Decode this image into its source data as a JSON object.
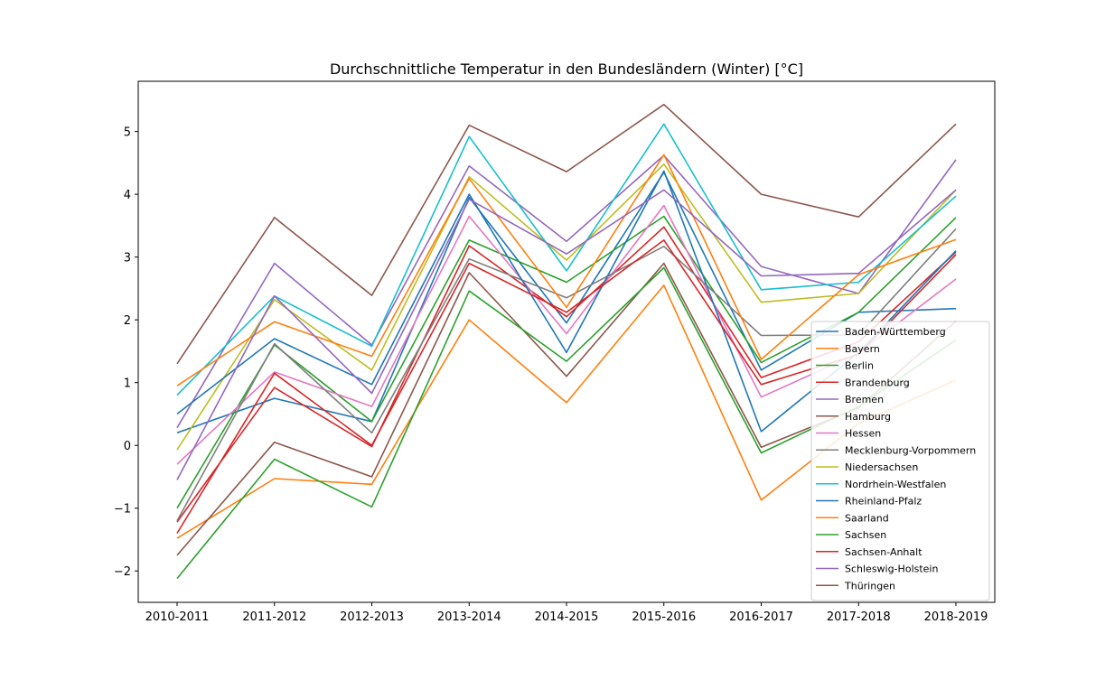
{
  "chart_data": {
    "type": "line",
    "title": "Durchschnittliche Temperatur in den Bundesländern (Winter) [°C]",
    "xlabel": "",
    "ylabel": "",
    "categories": [
      "2010-2011",
      "2011-2012",
      "2012-2013",
      "2013-2014",
      "2014-2015",
      "2015-2016",
      "2016-2017",
      "2017-2018",
      "2018-2019"
    ],
    "ylim": [
      -2.5,
      5.8
    ],
    "yticks": [
      -2,
      -1,
      0,
      1,
      2,
      3,
      4,
      5
    ],
    "ytick_labels": [
      "−2",
      "−1",
      "0",
      "1",
      "2",
      "3",
      "4",
      "5"
    ],
    "grid": false,
    "legend_position": "lower-right",
    "series": [
      {
        "name": "Baden-Württemberg",
        "color": "#1f77b4",
        "values": [
          0.2,
          0.75,
          0.38,
          3.95,
          1.95,
          4.35,
          1.2,
          2.12,
          2.18
        ]
      },
      {
        "name": "Bayern",
        "color": "#ff7f0e",
        "values": [
          -1.48,
          -0.53,
          -0.62,
          2.0,
          0.68,
          2.55,
          -0.87,
          0.35,
          1.04
        ]
      },
      {
        "name": "Berlin",
        "color": "#2ca02c",
        "values": [
          -1.0,
          1.6,
          0.38,
          3.27,
          2.6,
          3.65,
          1.32,
          2.12,
          3.63
        ]
      },
      {
        "name": "Brandenburg",
        "color": "#d62728",
        "values": [
          -1.22,
          0.92,
          -0.02,
          3.18,
          2.05,
          3.48,
          1.08,
          1.65,
          3.08
        ]
      },
      {
        "name": "Bremen",
        "color": "#9467bd",
        "values": [
          0.28,
          2.9,
          1.6,
          4.45,
          3.25,
          4.62,
          2.85,
          2.42,
          4.55
        ]
      },
      {
        "name": "Hamburg",
        "color": "#8c564b",
        "values": [
          -1.75,
          0.05,
          -0.5,
          2.75,
          1.1,
          2.9,
          -0.03,
          0.6,
          1.98
        ]
      },
      {
        "name": "Hessen",
        "color": "#e377c2",
        "values": [
          -0.3,
          1.17,
          0.62,
          3.65,
          1.78,
          3.82,
          0.77,
          1.47,
          2.65
        ]
      },
      {
        "name": "Mecklenburg-Vorpommern",
        "color": "#7f7f7f",
        "values": [
          -1.2,
          1.62,
          0.2,
          2.97,
          2.35,
          3.17,
          1.75,
          1.76,
          3.45
        ]
      },
      {
        "name": "Niedersachsen",
        "color": "#bcbd22",
        "values": [
          -0.07,
          2.32,
          1.2,
          4.28,
          2.95,
          4.48,
          2.28,
          2.42,
          4.07
        ]
      },
      {
        "name": "Nordrhein-Westfalen",
        "color": "#17becf",
        "values": [
          0.8,
          2.38,
          1.58,
          4.92,
          2.78,
          5.12,
          2.48,
          2.6,
          3.97
        ]
      },
      {
        "name": "Rheinland-Pfalz",
        "color": "#1f77b4",
        "values": [
          0.5,
          1.7,
          0.97,
          4.0,
          1.48,
          4.37,
          0.22,
          1.48,
          3.1
        ]
      },
      {
        "name": "Saarland",
        "color": "#ff7f0e",
        "values": [
          0.95,
          1.97,
          1.42,
          4.25,
          2.2,
          4.63,
          1.37,
          2.72,
          3.28
        ]
      },
      {
        "name": "Sachsen",
        "color": "#2ca02c",
        "values": [
          -2.12,
          -0.22,
          -0.98,
          2.46,
          1.34,
          2.83,
          -0.12,
          0.62,
          1.68
        ]
      },
      {
        "name": "Sachsen-Anhalt",
        "color": "#d62728",
        "values": [
          -1.4,
          1.15,
          0.0,
          2.9,
          2.12,
          3.27,
          0.97,
          1.45,
          3.04
        ]
      },
      {
        "name": "Schleswig-Holstein",
        "color": "#9467bd",
        "values": [
          -0.55,
          2.38,
          0.83,
          3.92,
          3.05,
          4.07,
          2.7,
          2.74,
          4.07
        ]
      },
      {
        "name": "Thüringen",
        "color": "#8c564b",
        "values": [
          1.3,
          3.63,
          2.39,
          5.1,
          4.36,
          5.43,
          4.0,
          3.64,
          5.12
        ]
      }
    ]
  }
}
